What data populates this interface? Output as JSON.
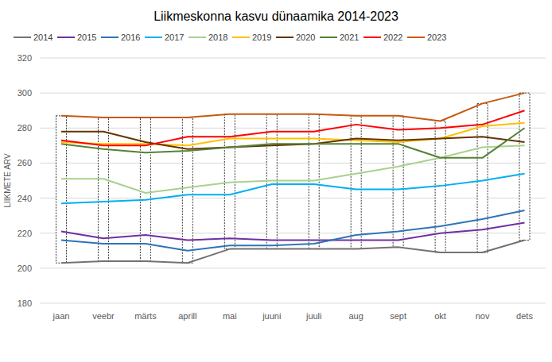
{
  "chart_data": {
    "type": "line",
    "title": "Liikmeskonna kasvu dünaamika 2014-2023",
    "y_label": "LIIKMETE ARV",
    "categories": [
      "jaan",
      "veebr",
      "märts",
      "aprill",
      "mai",
      "juuni",
      "juuli",
      "aug",
      "sept",
      "okt",
      "nov",
      "dets"
    ],
    "series": [
      {
        "name": "2014",
        "color": "#767171",
        "values": [
          203,
          204,
          204,
          203,
          211,
          211,
          211,
          211,
          212,
          209,
          209,
          216
        ]
      },
      {
        "name": "2015",
        "color": "#7030a0",
        "values": [
          221,
          217,
          219,
          216,
          217,
          216,
          216,
          216,
          216,
          220,
          222,
          226
        ]
      },
      {
        "name": "2016",
        "color": "#2e75b6",
        "values": [
          216,
          214,
          214,
          210,
          213,
          213,
          214,
          219,
          221,
          224,
          228,
          233
        ]
      },
      {
        "name": "2017",
        "color": "#00b0f0",
        "values": [
          237,
          238,
          239,
          242,
          242,
          248,
          248,
          245,
          245,
          247,
          250,
          254
        ]
      },
      {
        "name": "2018",
        "color": "#a9d18e",
        "values": [
          251,
          251,
          243,
          246,
          249,
          250,
          250,
          254,
          258,
          263,
          269,
          270
        ]
      },
      {
        "name": "2019",
        "color": "#ffc000",
        "values": [
          272,
          271,
          271,
          270,
          274,
          274,
          274,
          273,
          272,
          274,
          281,
          283
        ]
      },
      {
        "name": "2020",
        "color": "#663300",
        "values": [
          278,
          278,
          272,
          268,
          269,
          270,
          271,
          274,
          273,
          274,
          275,
          272
        ]
      },
      {
        "name": "2021",
        "color": "#548235",
        "values": [
          271,
          268,
          266,
          267,
          269,
          271,
          271,
          271,
          271,
          263,
          263,
          280
        ]
      },
      {
        "name": "2022",
        "color": "#ff0000",
        "values": [
          273,
          270,
          270,
          275,
          275,
          278,
          278,
          282,
          279,
          280,
          282,
          290
        ]
      },
      {
        "name": "2023",
        "color": "#c55a11",
        "values": [
          287,
          286,
          286,
          286,
          288,
          288,
          288,
          287,
          287,
          284,
          294,
          300
        ]
      }
    ],
    "ylim": [
      180,
      320
    ],
    "yticks": [
      180,
      200,
      220,
      240,
      260,
      280,
      300,
      320
    ],
    "grid": true,
    "legend": "top"
  }
}
